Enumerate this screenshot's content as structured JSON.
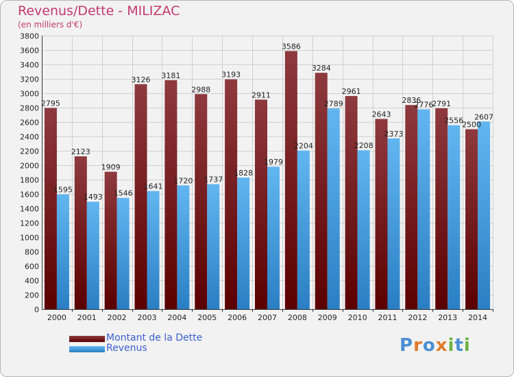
{
  "title": "Revenus/Dette - MILIZAC",
  "subtitle": "(en milliers d'€)",
  "logo_text": "Proxiti",
  "colors": {
    "debt": "#7a1a20",
    "revenue": "#3d9be0",
    "title": "#c23a6a",
    "legend_text": "#3a5fcd"
  },
  "chart_data": {
    "type": "bar",
    "categories": [
      "2000",
      "2001",
      "2002",
      "2003",
      "2004",
      "2005",
      "2006",
      "2007",
      "2008",
      "2009",
      "2010",
      "2011",
      "2012",
      "2013",
      "2014"
    ],
    "series": [
      {
        "name": "Montant de la Dette",
        "values": [
          2795,
          2123,
          1909,
          3126,
          3181,
          2988,
          3193,
          2911,
          3586,
          3284,
          2961,
          2643,
          2836,
          2791,
          2500
        ]
      },
      {
        "name": "Revenus",
        "values": [
          1595,
          1493,
          1546,
          1641,
          1720,
          1737,
          1828,
          1979,
          2204,
          2789,
          2208,
          2373,
          2776,
          2556,
          2607
        ]
      }
    ],
    "ylim": [
      0,
      3800
    ],
    "ytick_step": 200,
    "grid": true,
    "legend_position": "bottom-left"
  }
}
